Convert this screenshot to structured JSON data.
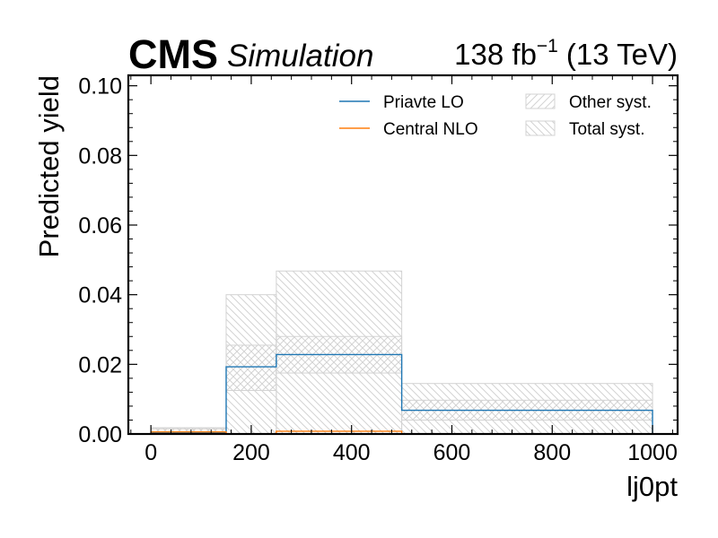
{
  "header": {
    "experiment": "CMS",
    "tag": "Simulation",
    "lumi_value": "138 fb",
    "lumi_exp": "−1",
    "energy": "(13 TeV)"
  },
  "chart_data": {
    "type": "histogram-step",
    "xlabel": "lj0pt",
    "ylabel": "Predicted yield",
    "xlim": [
      -45,
      1050
    ],
    "ylim": [
      0,
      0.103
    ],
    "x_ticks": [
      0,
      200,
      400,
      600,
      800,
      1000
    ],
    "y_ticks": [
      0.0,
      0.02,
      0.04,
      0.06,
      0.08,
      0.1
    ],
    "x_tick_labels": [
      "0",
      "200",
      "400",
      "600",
      "800",
      "1000"
    ],
    "y_tick_labels": [
      "0.00",
      "0.02",
      "0.04",
      "0.06",
      "0.08",
      "0.10"
    ],
    "bin_edges": [
      0,
      150,
      250,
      500,
      1000
    ],
    "series": [
      {
        "name": "Priavte LO",
        "color": "#1f77b4",
        "values": [
          0.0003,
          0.0193,
          0.0228,
          0.0068
        ]
      },
      {
        "name": "Central NLO",
        "color": "#ff7f0e",
        "values": [
          0.0006,
          0.0,
          0.0008,
          0.0
        ]
      }
    ],
    "bands": [
      {
        "name": "Other syst.",
        "pattern": "hatch-forward",
        "color": "#d3d3d3",
        "low": [
          0.0,
          0.0125,
          0.0175,
          0.004
        ],
        "high": [
          0.0015,
          0.0255,
          0.028,
          0.0097
        ]
      },
      {
        "name": "Total syst.",
        "pattern": "hatch-back",
        "color": "#d3d3d3",
        "low": [
          0.0,
          0.0,
          0.0,
          0.0
        ],
        "high": [
          0.0018,
          0.04,
          0.0468,
          0.0145
        ]
      }
    ],
    "legend": {
      "placement": "top-right",
      "entries": [
        {
          "label": "Priavte LO",
          "kind": "line",
          "color": "#1f77b4"
        },
        {
          "label": "Other syst.",
          "kind": "hatch-forward"
        },
        {
          "label": "Central NLO",
          "kind": "line",
          "color": "#ff7f0e"
        },
        {
          "label": "Total syst.",
          "kind": "hatch-back"
        }
      ]
    },
    "grid": false
  }
}
